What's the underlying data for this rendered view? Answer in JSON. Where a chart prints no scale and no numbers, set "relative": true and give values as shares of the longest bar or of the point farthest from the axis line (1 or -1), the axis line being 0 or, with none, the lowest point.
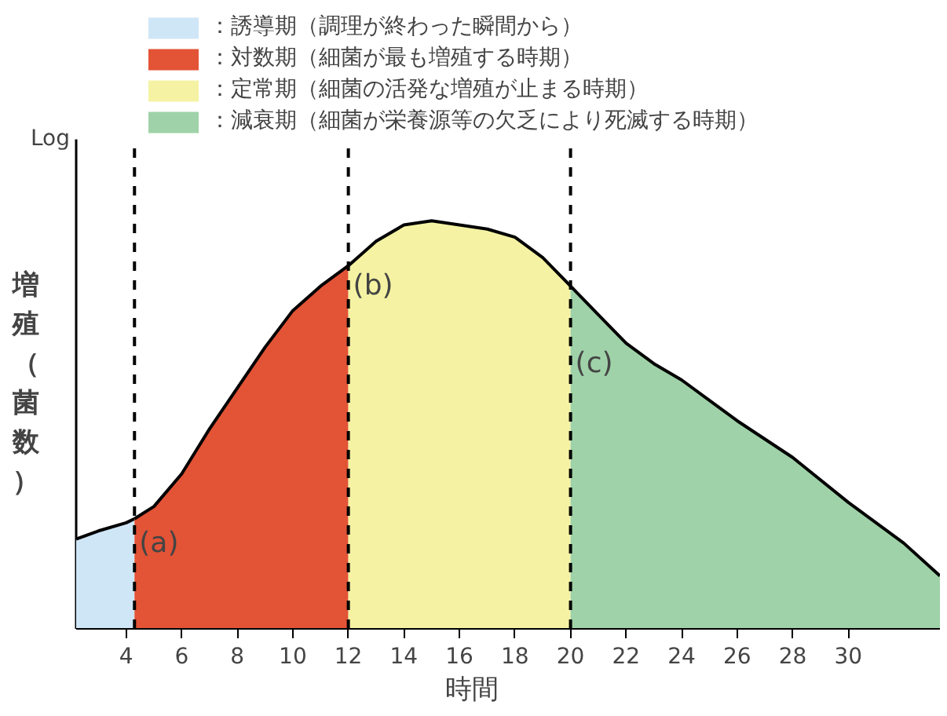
{
  "chart_data": {
    "type": "area",
    "relative": true,
    "xlabel": "時間",
    "ylabel": "増殖（菌数）",
    "legend": "top",
    "grid": false,
    "xlim": [
      2.2,
      33.3
    ],
    "xticks": [
      4,
      6,
      8,
      10,
      12,
      14,
      16,
      18,
      20,
      22,
      24,
      26,
      28,
      30
    ],
    "series": [
      {
        "name": "：誘導期（調理が終わった瞬間から）",
        "color": "#cfe6f6",
        "x": [
          2.2,
          3,
          4,
          4.3
        ],
        "values": [
          0.22,
          0.24,
          0.26,
          0.27
        ]
      },
      {
        "name": "：対数期（細菌が最も増殖する時期）",
        "color": "#e35336",
        "x": [
          4.3,
          5,
          6,
          7,
          8,
          9,
          10,
          11,
          12
        ],
        "values": [
          0.27,
          0.3,
          0.38,
          0.49,
          0.59,
          0.69,
          0.78,
          0.84,
          0.89
        ]
      },
      {
        "name": "：定常期（細菌の活発な増殖が止まる時期）",
        "color": "#f5f3a3",
        "x": [
          12,
          13,
          14,
          15,
          16,
          17,
          18,
          19,
          20
        ],
        "values": [
          0.89,
          0.95,
          0.99,
          1.0,
          0.99,
          0.98,
          0.96,
          0.91,
          0.84
        ]
      },
      {
        "name": "：減衰期（細菌が栄養源等の欠乏により死滅する時期）",
        "color": "#9fd2a8",
        "x": [
          20,
          21,
          22,
          23,
          24,
          26,
          28,
          30,
          32,
          33.3
        ],
        "values": [
          0.84,
          0.77,
          0.7,
          0.65,
          0.61,
          0.51,
          0.42,
          0.31,
          0.21,
          0.13
        ]
      }
    ],
    "ref_lines": [
      {
        "axis": "x",
        "value": 4.3,
        "line_style": "dashed"
      },
      {
        "axis": "x",
        "value": 12,
        "line_style": "dashed"
      },
      {
        "axis": "x",
        "value": 20,
        "line_style": "dashed"
      }
    ],
    "annotations": [
      "Log",
      {
        "text": "(a)",
        "x": 4.3,
        "y": 0.21
      },
      {
        "text": "(b)",
        "x": 12,
        "y": 0.84
      },
      {
        "text": "(c)",
        "x": 20,
        "y": 0.65
      }
    ]
  }
}
